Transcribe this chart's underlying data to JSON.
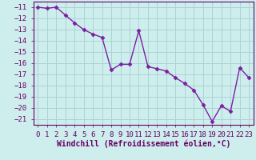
{
  "x": [
    0,
    1,
    2,
    3,
    4,
    5,
    6,
    7,
    8,
    9,
    10,
    11,
    12,
    13,
    14,
    15,
    16,
    17,
    18,
    19,
    20,
    21,
    22,
    23
  ],
  "y": [
    -11.0,
    -11.1,
    -11.0,
    -11.7,
    -12.4,
    -13.0,
    -13.4,
    -13.7,
    -16.6,
    -16.1,
    -16.1,
    -13.1,
    -16.3,
    -16.5,
    -16.7,
    -17.3,
    -17.8,
    -18.4,
    -19.7,
    -21.2,
    -19.8,
    -20.3,
    -16.4,
    -17.3
  ],
  "color": "#7b1fa2",
  "marker": "D",
  "markersize": 2.5,
  "linewidth": 1.0,
  "xlabel": "Windchill (Refroidissement éolien,°C)",
  "ylim": [
    -21.5,
    -10.5
  ],
  "xlim": [
    -0.5,
    23.5
  ],
  "yticks": [
    -11,
    -12,
    -13,
    -14,
    -15,
    -16,
    -17,
    -18,
    -19,
    -20,
    -21
  ],
  "xtick_labels": [
    "0",
    "1",
    "2",
    "3",
    "4",
    "5",
    "6",
    "7",
    "8",
    "9",
    "10",
    "11",
    "12",
    "13",
    "14",
    "15",
    "16",
    "17",
    "18",
    "19",
    "20",
    "21",
    "22",
    "23"
  ],
  "bg_color": "#ceeeed",
  "grid_color": "#aad4d3",
  "font_color": "#660066",
  "xlabel_fontsize": 7.0,
  "tick_fontsize": 6.5
}
